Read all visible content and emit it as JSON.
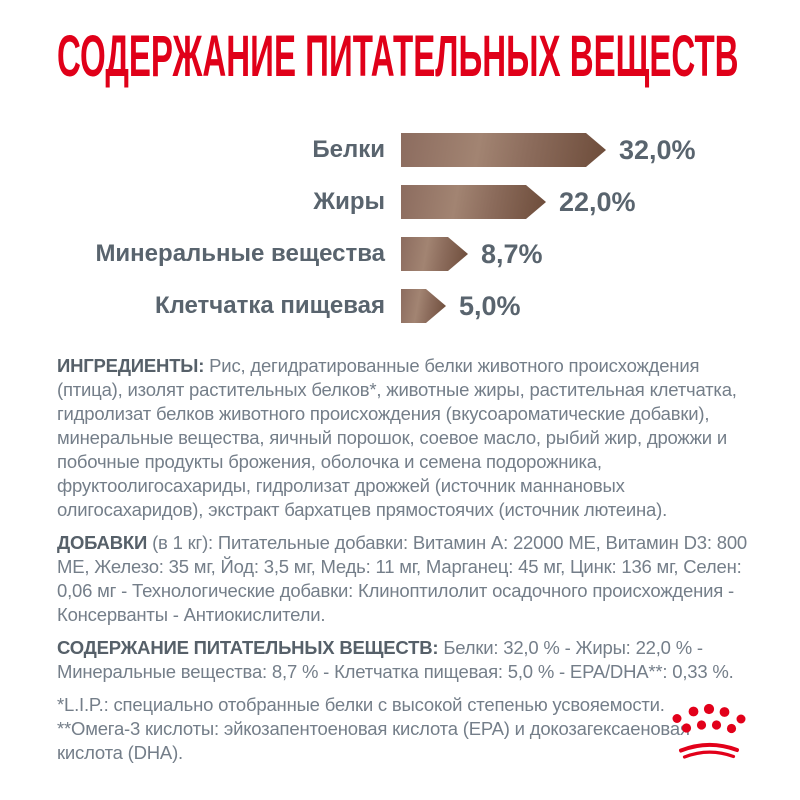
{
  "title": {
    "text": "СОДЕРЖАНИЕ ПИТАТЕЛЬНЫХ ВЕЩЕСТВ",
    "color": "#e00019"
  },
  "chart_data": {
    "type": "bar",
    "orientation": "horizontal",
    "categories": [
      "Белки",
      "Жиры",
      "Минеральные вещества",
      "Клетчатка пищевая"
    ],
    "values": [
      32.0,
      22.0,
      8.7,
      5.0
    ],
    "value_labels": [
      "32,0%",
      "22,0%",
      "8,7%",
      "5,0%"
    ],
    "xlim": [
      0,
      34
    ],
    "grid": false,
    "legend": "none",
    "bar_gradient": [
      "#8c6c5f",
      "#a28472",
      "#6d4c3a"
    ],
    "label_color": "#59646e"
  },
  "paragraphs": [
    {
      "lead": "ИНГРЕДИЕНТЫ:",
      "text": "Рис, дегидратированные белки животного происхождения (птица), изолят растительных белков*, животные жиры, растительная клетчатка, гидролизат белков животного происхождения (вкусоароматические добавки), минеральные вещества, яичный порошок, соевое масло, рыбий жир, дрожжи и побочные продукты брожения, оболочка и семена подорожника, фруктоолигосахариды, гидролизат дрожжей (источник маннановых олигосахаридов), экстракт бархатцев прямостоячих (источник лютеина)."
    },
    {
      "lead": "ДОБАВКИ",
      "text": "(в 1 кг): Питательные добавки: Витамин A: 22000 МЕ, Витамин D3: 800 МЕ, Железо: 35 мг, Йод: 3,5 мг, Медь: 11 мг, Марганец: 45 мг, Цинк: 136 мг, Селен: 0,06 мг - Технологические добавки: Клиноптилолит осадочного происхождения - Консерванты - Антиокислители."
    },
    {
      "lead": "СОДЕРЖАНИЕ ПИТАТЕЛЬНЫХ ВЕЩЕСТВ:",
      "text": "Белки: 32,0 % - Жиры: 22,0 % - Минеральные вещества: 8,7 % - Клетчатка пищевая: 5,0 % - EPA/DHA**: 0,33 %."
    }
  ],
  "footnotes": [
    "*L.I.P.: специально отобранные белки с высокой степенью усвояемости.",
    "**Омега-3 кислоты: эйкозапентоеновая кислота (EPA) и докозагексаеновая кислота (DHA)."
  ],
  "logo": {
    "name": "royal-canin-crown",
    "color": "#e2001a"
  }
}
